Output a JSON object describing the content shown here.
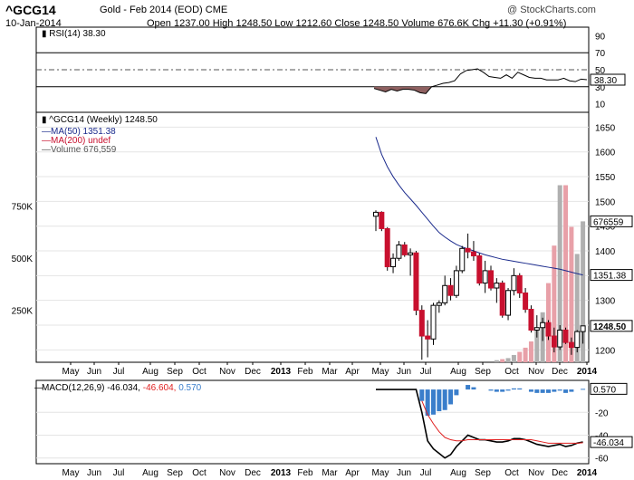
{
  "header": {
    "symbol": "^GCG14",
    "description": "Gold - Feb 2014 (EOD)  CME",
    "credit": "@ StockCharts.com",
    "date": "10-Jan-2014",
    "ohlc": "Open 1237.00   High 1248.50   Low 1212.60   Close 1248.50   Volume 676.6K   Chg +11.30 (+0.91%)"
  },
  "colors": {
    "up": "#ffffff",
    "down": "#c8102e",
    "ma50": "#1a2a8c",
    "macd_signal": "#e02020",
    "histogram": "#3a7ecb",
    "volume_down": "#e8a0a8",
    "volume_up": "#b0b0b0",
    "rsi_fill": "#8e6060"
  },
  "chart_data": [
    {
      "type": "line",
      "panel": "rsi",
      "legend": "RSI(14) 38.30",
      "y_ticks": [
        "90",
        "70",
        "50",
        "30",
        "10"
      ],
      "ylim": [
        0,
        100
      ],
      "last_label": "38.30",
      "x": [
        "2013-04-26",
        "2013-05-03",
        "2013-05-10",
        "2013-05-17",
        "2013-05-24",
        "2013-05-31",
        "2013-06-07",
        "2013-06-14",
        "2013-06-21",
        "2013-06-28",
        "2013-07-05",
        "2013-07-12",
        "2013-07-19",
        "2013-07-26",
        "2013-08-02",
        "2013-08-09",
        "2013-08-16",
        "2013-08-23",
        "2013-08-30",
        "2013-09-06",
        "2013-09-13",
        "2013-09-20",
        "2013-09-27",
        "2013-10-04",
        "2013-10-11",
        "2013-10-18",
        "2013-10-25",
        "2013-11-01",
        "2013-11-08",
        "2013-11-15",
        "2013-11-22",
        "2013-11-29",
        "2013-12-06",
        "2013-12-13",
        "2013-12-20",
        "2013-12-27",
        "2014-01-03",
        "2014-01-10"
      ],
      "values": [
        28,
        26,
        24,
        27,
        25,
        27,
        27,
        26,
        23,
        22,
        30,
        32,
        34,
        35,
        37,
        45,
        49,
        50,
        51,
        47,
        42,
        41,
        40,
        44,
        40,
        47,
        44,
        41,
        40,
        40,
        38,
        38,
        38,
        40,
        37,
        36,
        39,
        38.3
      ]
    },
    {
      "type": "candlestick",
      "panel": "price",
      "legend": "^GCG14 (Weekly) 1248.50",
      "series_legend": [
        {
          "name": "MA(50) 1351.38",
          "color": "#1a2a8c"
        },
        {
          "name": "MA(200) undef",
          "color": "#c8102e"
        },
        {
          "name": "Volume 676,559",
          "color": "#555555"
        }
      ],
      "y_ticks": [
        "1650",
        "1600",
        "1550",
        "1500",
        "1450",
        "1400",
        "1350",
        "1300",
        "1250",
        "1200"
      ],
      "ylim": [
        1175,
        1680
      ],
      "vol_ticks": [
        "750K",
        "500K",
        "250K"
      ],
      "vol_lim": [
        0,
        1200000
      ],
      "last_labels": {
        "ma50": "1351.38",
        "volume": "676559",
        "close": "1248.50"
      },
      "x_labels": [
        "May",
        "Jun",
        "Jul",
        "Aug",
        "Sep",
        "Oct",
        "Nov",
        "Dec",
        "2013",
        "Feb",
        "Mar",
        "Apr",
        "May",
        "Jun",
        "Jul",
        "Aug",
        "Sep",
        "Oct",
        "Nov",
        "Dec",
        "2014"
      ],
      "candles": [
        {
          "o": 1470,
          "h": 1482,
          "l": 1440,
          "c": 1478
        },
        {
          "o": 1478,
          "h": 1480,
          "l": 1440,
          "c": 1445
        },
        {
          "o": 1445,
          "h": 1448,
          "l": 1360,
          "c": 1368
        },
        {
          "o": 1368,
          "h": 1395,
          "l": 1355,
          "c": 1385
        },
        {
          "o": 1385,
          "h": 1420,
          "l": 1380,
          "c": 1412
        },
        {
          "o": 1412,
          "h": 1418,
          "l": 1388,
          "c": 1392
        },
        {
          "o": 1392,
          "h": 1405,
          "l": 1350,
          "c": 1396
        },
        {
          "o": 1396,
          "h": 1400,
          "l": 1270,
          "c": 1280
        },
        {
          "o": 1280,
          "h": 1290,
          "l": 1180,
          "c": 1228
        },
        {
          "o": 1228,
          "h": 1260,
          "l": 1185,
          "c": 1222
        },
        {
          "o": 1222,
          "h": 1295,
          "l": 1210,
          "c": 1290
        },
        {
          "o": 1290,
          "h": 1300,
          "l": 1275,
          "c": 1295
        },
        {
          "o": 1295,
          "h": 1350,
          "l": 1290,
          "c": 1330
        },
        {
          "o": 1330,
          "h": 1345,
          "l": 1300,
          "c": 1310
        },
        {
          "o": 1310,
          "h": 1370,
          "l": 1305,
          "c": 1360
        },
        {
          "o": 1360,
          "h": 1410,
          "l": 1355,
          "c": 1405
        },
        {
          "o": 1405,
          "h": 1435,
          "l": 1385,
          "c": 1398
        },
        {
          "o": 1398,
          "h": 1420,
          "l": 1380,
          "c": 1390
        },
        {
          "o": 1390,
          "h": 1395,
          "l": 1330,
          "c": 1335
        },
        {
          "o": 1335,
          "h": 1380,
          "l": 1315,
          "c": 1360
        },
        {
          "o": 1360,
          "h": 1370,
          "l": 1320,
          "c": 1325
        },
        {
          "o": 1325,
          "h": 1345,
          "l": 1295,
          "c": 1335
        },
        {
          "o": 1335,
          "h": 1340,
          "l": 1265,
          "c": 1270
        },
        {
          "o": 1270,
          "h": 1325,
          "l": 1260,
          "c": 1320
        },
        {
          "o": 1320,
          "h": 1365,
          "l": 1310,
          "c": 1350
        },
        {
          "o": 1350,
          "h": 1355,
          "l": 1305,
          "c": 1315
        },
        {
          "o": 1315,
          "h": 1325,
          "l": 1275,
          "c": 1282
        },
        {
          "o": 1282,
          "h": 1290,
          "l": 1235,
          "c": 1240
        },
        {
          "o": 1240,
          "h": 1270,
          "l": 1225,
          "c": 1245
        },
        {
          "o": 1245,
          "h": 1265,
          "l": 1218,
          "c": 1255
        },
        {
          "o": 1255,
          "h": 1260,
          "l": 1220,
          "c": 1228
        },
        {
          "o": 1228,
          "h": 1245,
          "l": 1195,
          "c": 1206
        },
        {
          "o": 1206,
          "h": 1250,
          "l": 1200,
          "c": 1240
        },
        {
          "o": 1240,
          "h": 1245,
          "l": 1212,
          "c": 1215
        },
        {
          "o": 1215,
          "h": 1225,
          "l": 1190,
          "c": 1205
        },
        {
          "o": 1205,
          "h": 1240,
          "l": 1195,
          "c": 1237
        },
        {
          "o": 1237,
          "h": 1248.5,
          "l": 1212.6,
          "c": 1248.5
        }
      ],
      "ma50": [
        1630,
        1595,
        1570,
        1550,
        1533,
        1518,
        1505,
        1492,
        1478,
        1464,
        1450,
        1437,
        1428,
        1420,
        1413,
        1408,
        1404,
        1400,
        1396,
        1392,
        1389,
        1386,
        1383,
        1381,
        1379,
        1377,
        1375,
        1373,
        1371,
        1369,
        1367,
        1365,
        1363,
        1360,
        1357,
        1354,
        1351.38
      ],
      "volume": [
        0,
        0,
        0,
        0,
        0,
        0,
        0,
        0,
        0,
        0,
        0,
        0,
        0,
        0,
        0,
        0,
        0,
        0,
        0,
        0,
        0,
        10000,
        15000,
        20000,
        35000,
        50000,
        70000,
        100000,
        160000,
        240000,
        380000,
        560000,
        850000,
        850000,
        650000,
        520000,
        676559
      ]
    },
    {
      "type": "line",
      "panel": "macd",
      "legend_prefix": "MACD(12,26,9)",
      "legend_macd": "-46.034",
      "legend_signal": "-46.604",
      "legend_hist": "0.570",
      "y_ticks": [
        "-20",
        "-40",
        "-60"
      ],
      "ylim": [
        -65,
        8
      ],
      "last_labels": {
        "hist": "0.570",
        "macd": "-46.034"
      },
      "x_labels": [
        "May",
        "Jun",
        "Jul",
        "Aug",
        "Sep",
        "Oct",
        "Nov",
        "Dec",
        "2013",
        "Feb",
        "Mar",
        "Apr",
        "May",
        "Jun",
        "Jul",
        "Aug",
        "Sep",
        "Oct",
        "Nov",
        "Dec",
        "2014"
      ],
      "macd": [
        0,
        0,
        0,
        0,
        0,
        0,
        0,
        0,
        -20,
        -45,
        -52,
        -56,
        -60,
        -57,
        -50,
        -45,
        -40,
        -42,
        -44,
        -44,
        -45,
        -46,
        -46,
        -45,
        -43,
        -43,
        -44,
        -46,
        -48,
        -49,
        -50,
        -49,
        -48,
        -50,
        -49,
        -47,
        -46.034
      ],
      "signal": [
        null,
        null,
        null,
        null,
        null,
        null,
        null,
        null,
        -10,
        -22,
        -30,
        -37,
        -42,
        -44,
        -45,
        -45,
        -44,
        -44,
        -44,
        -44,
        -44,
        -44,
        -44,
        -44,
        -44,
        -44,
        -44,
        -44,
        -45,
        -46,
        -47,
        -47,
        -47,
        -47,
        -47,
        -47,
        -46.604
      ],
      "hist": [
        0,
        0,
        0,
        0,
        0,
        0,
        0,
        0,
        -10,
        -23,
        -22,
        -19,
        -18,
        -13,
        -5,
        0,
        4,
        2,
        0,
        0,
        -1,
        -2,
        -2,
        -1,
        1,
        1,
        0,
        -2,
        -3,
        -3,
        -3,
        -2,
        -1,
        -3,
        -2,
        0,
        0.57
      ]
    }
  ]
}
